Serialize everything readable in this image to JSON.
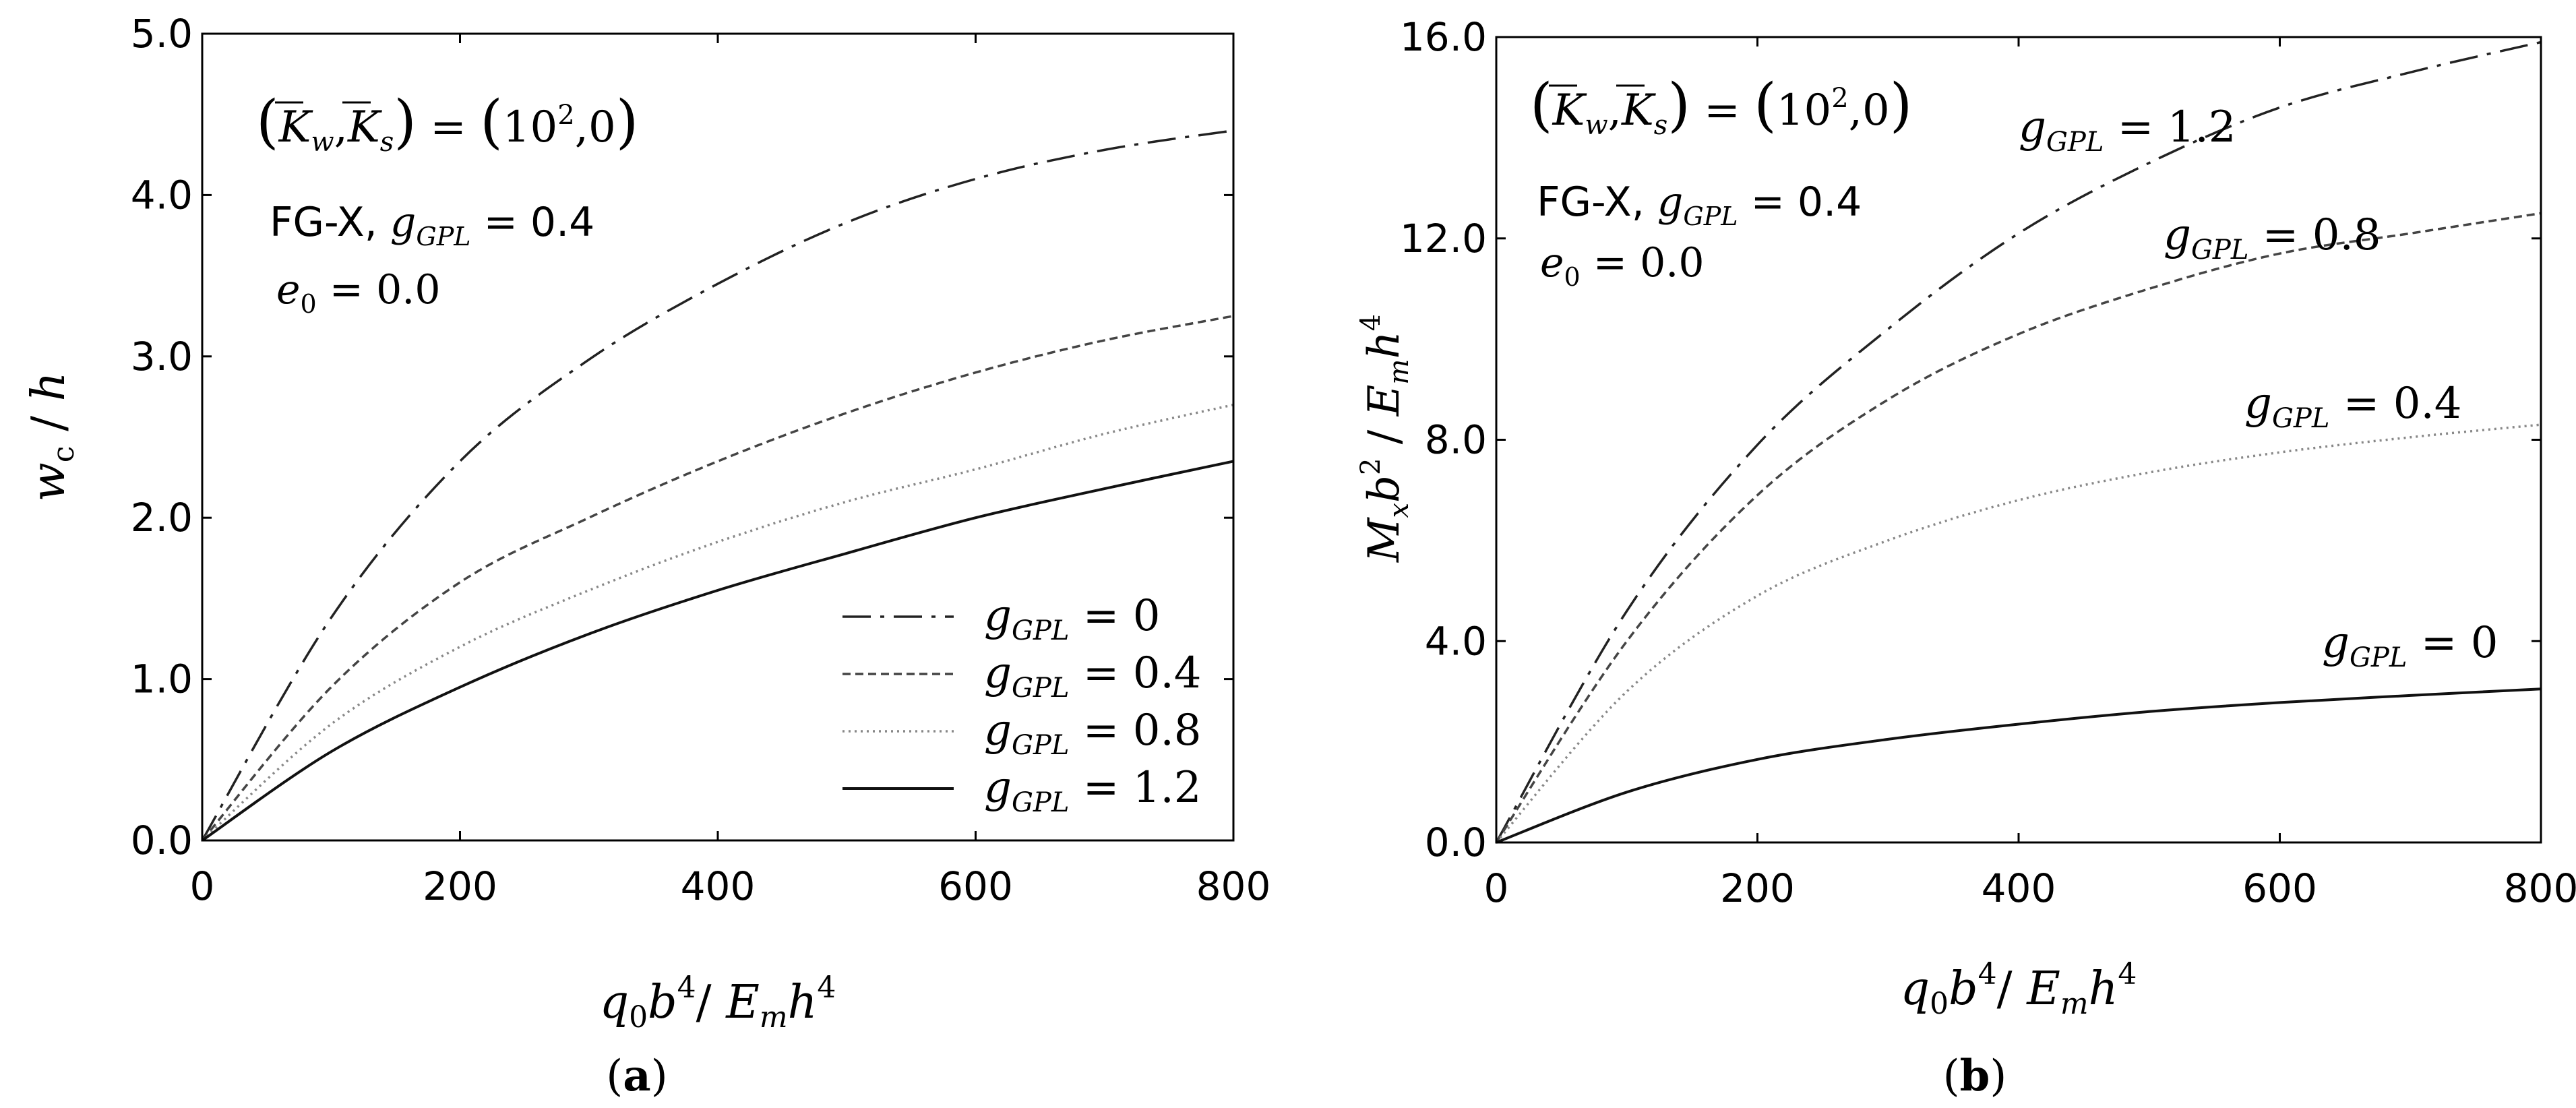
{
  "chart_data": [
    {
      "type": "line",
      "panel_label": "a",
      "xlabel": "q0b4/Emh4",
      "ylabel": "wc / h",
      "xlim": [
        0,
        800
      ],
      "ylim": [
        0,
        5.0
      ],
      "xticks": [
        "0",
        "200",
        "400",
        "600",
        "800"
      ],
      "yticks": [
        "0.0",
        "1.0",
        "2.0",
        "3.0",
        "4.0",
        "5.0"
      ],
      "grid": false,
      "legend_position": "bottom-right",
      "annotations": {
        "foundation": "(Kw, Ks) = (10², 0)",
        "pattern": "FG-X, gGPL = 0.4",
        "eccentricity": "e0 = 0.0"
      },
      "series": [
        {
          "name": "gGPL = 0",
          "style": "dashdot",
          "color": "#222222",
          "x": [
            0,
            100,
            200,
            300,
            400,
            500,
            600,
            700,
            800
          ],
          "y": [
            0,
            1.38,
            2.35,
            2.98,
            3.45,
            3.83,
            4.1,
            4.28,
            4.4
          ]
        },
        {
          "name": "gGPL = 0.4",
          "style": "dashed",
          "color": "#444444",
          "x": [
            0,
            100,
            200,
            300,
            400,
            500,
            600,
            700,
            800
          ],
          "y": [
            0,
            0.95,
            1.6,
            2.0,
            2.35,
            2.65,
            2.9,
            3.1,
            3.25
          ]
        },
        {
          "name": "gGPL = 0.8",
          "style": "dotted",
          "color": "#888888",
          "x": [
            0,
            100,
            200,
            300,
            400,
            500,
            600,
            700,
            800
          ],
          "y": [
            0,
            0.72,
            1.2,
            1.55,
            1.85,
            2.1,
            2.3,
            2.52,
            2.7
          ]
        },
        {
          "name": "gGPL = 1.2",
          "style": "solid",
          "color": "#111111",
          "x": [
            0,
            100,
            200,
            300,
            400,
            500,
            600,
            700,
            800
          ],
          "y": [
            0,
            0.55,
            0.95,
            1.28,
            1.55,
            1.78,
            2.0,
            2.18,
            2.35
          ]
        }
      ]
    },
    {
      "type": "line",
      "panel_label": "b",
      "xlabel": "q0b4/Emh4",
      "ylabel": "Mxb2 / Emh4",
      "xlim": [
        0,
        800
      ],
      "ylim": [
        0,
        16.0
      ],
      "xticks": [
        "0",
        "200",
        "400",
        "600",
        "800"
      ],
      "yticks": [
        "0.0",
        "4.0",
        "8.0",
        "12.0",
        "16.0"
      ],
      "grid": false,
      "annotations": {
        "foundation": "(Kw, Ks) = (10², 0)",
        "pattern": "FG-X, gGPL = 0.4",
        "eccentricity": "e0 = 0.0"
      },
      "series": [
        {
          "name": "gGPL = 1.2",
          "style": "dashdot",
          "color": "#222222",
          "x": [
            0,
            100,
            200,
            300,
            400,
            500,
            600,
            700,
            800
          ],
          "y": [
            0,
            4.6,
            7.9,
            10.2,
            12.1,
            13.5,
            14.6,
            15.3,
            15.9
          ]
        },
        {
          "name": "gGPL = 0.8",
          "style": "dashed",
          "color": "#444444",
          "x": [
            0,
            100,
            200,
            300,
            400,
            500,
            600,
            700,
            800
          ],
          "y": [
            0,
            4.0,
            6.9,
            8.8,
            10.1,
            11.0,
            11.7,
            12.1,
            12.5
          ]
        },
        {
          "name": "gGPL = 0.4",
          "style": "dotted",
          "color": "#888888",
          "x": [
            0,
            100,
            200,
            300,
            400,
            500,
            600,
            700,
            800
          ],
          "y": [
            0,
            3.0,
            4.9,
            6.0,
            6.8,
            7.35,
            7.75,
            8.05,
            8.3
          ]
        },
        {
          "name": "gGPL = 0",
          "style": "solid",
          "color": "#111111",
          "x": [
            0,
            100,
            200,
            300,
            400,
            500,
            600,
            700,
            800
          ],
          "y": [
            0,
            1.0,
            1.65,
            2.05,
            2.35,
            2.6,
            2.78,
            2.92,
            3.05
          ]
        }
      ]
    }
  ]
}
